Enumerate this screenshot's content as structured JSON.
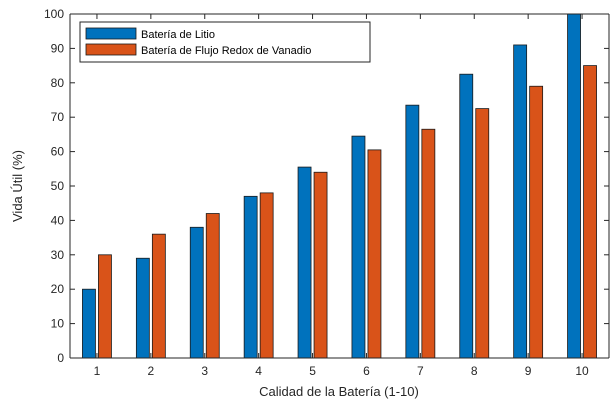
{
  "chart_data": {
    "type": "bar",
    "title": "",
    "xlabel": "Calidad de la Batería (1-10)",
    "ylabel": "Vida Útil (%)",
    "categories": [
      "1",
      "2",
      "3",
      "4",
      "5",
      "6",
      "7",
      "8",
      "9",
      "10"
    ],
    "ylim": [
      0,
      100
    ],
    "yticks": [
      "0",
      "10",
      "20",
      "30",
      "40",
      "50",
      "60",
      "70",
      "80",
      "90",
      "100"
    ],
    "grid": false,
    "legend_position": "top-left",
    "series": [
      {
        "name": "Batería de Litio",
        "color": "#0072BD",
        "values": [
          20,
          29,
          38,
          47,
          55.5,
          64.5,
          73.5,
          82.5,
          91,
          100
        ]
      },
      {
        "name": "Batería de Flujo Redox de Vanadio",
        "color": "#D95319",
        "values": [
          30,
          36,
          42,
          48,
          54,
          60.5,
          66.5,
          72.5,
          79,
          85
        ]
      }
    ]
  }
}
